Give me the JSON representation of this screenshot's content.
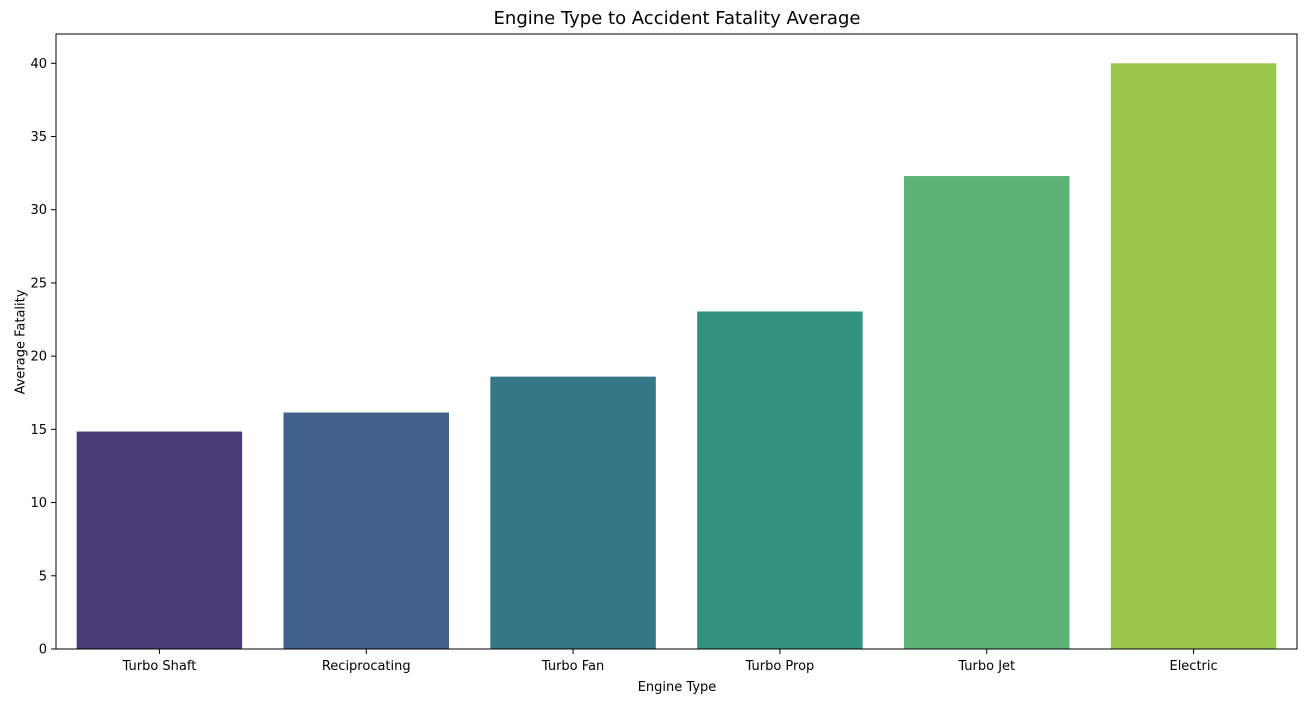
{
  "chart_data": {
    "type": "bar",
    "title": "Engine Type to Accident Fatality Average",
    "xlabel": "Engine Type",
    "ylabel": "Average Fatality",
    "categories": [
      "Turbo Shaft",
      "Reciprocating",
      "Turbo Fan",
      "Turbo Prop",
      "Turbo Jet",
      "Electric"
    ],
    "values": [
      14.85,
      16.15,
      18.6,
      23.05,
      32.3,
      40.0
    ],
    "colors": [
      "#4a3a75",
      "#41608a",
      "#357784",
      "#33917f",
      "#5bb375",
      "#9bc64e"
    ],
    "ylim": [
      0,
      42
    ],
    "yticks": [
      0,
      5,
      10,
      15,
      20,
      25,
      30,
      35,
      40
    ],
    "grid": false,
    "legend": "none"
  }
}
